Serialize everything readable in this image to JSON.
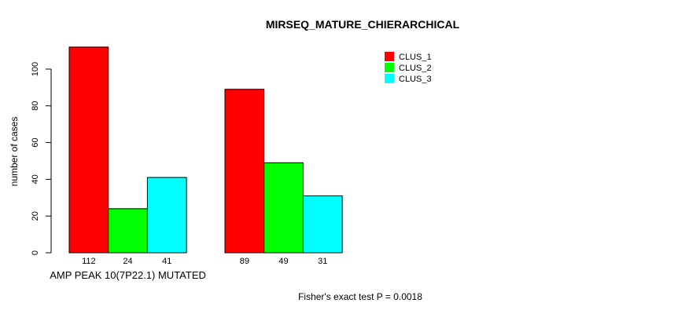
{
  "chart_data": {
    "type": "bar",
    "title": "MIRSEQ_MATURE_CHIERARCHICAL",
    "ylabel": "number of cases",
    "xlabel": "",
    "ylim": [
      0,
      100
    ],
    "yticks": [
      0,
      20,
      40,
      60,
      80,
      100
    ],
    "categories": [
      "AMP PEAK 10(7P22.1) MUTATED",
      ""
    ],
    "series": [
      {
        "name": "CLUS_1",
        "color": "#ff0000",
        "values": [
          112,
          89
        ]
      },
      {
        "name": "CLUS_2",
        "color": "#00ff00",
        "values": [
          24,
          49
        ]
      },
      {
        "name": "CLUS_3",
        "color": "#00ffff",
        "values": [
          41,
          31
        ]
      }
    ],
    "bar_value_labels": [
      [
        112,
        24,
        41
      ],
      [
        89,
        49,
        31
      ]
    ],
    "annotation": "Fisher's exact test P = 0.0018",
    "legend_position": "top-right",
    "grid": false,
    "bar_border_color": "#000000",
    "background_color": "#ffffff"
  }
}
